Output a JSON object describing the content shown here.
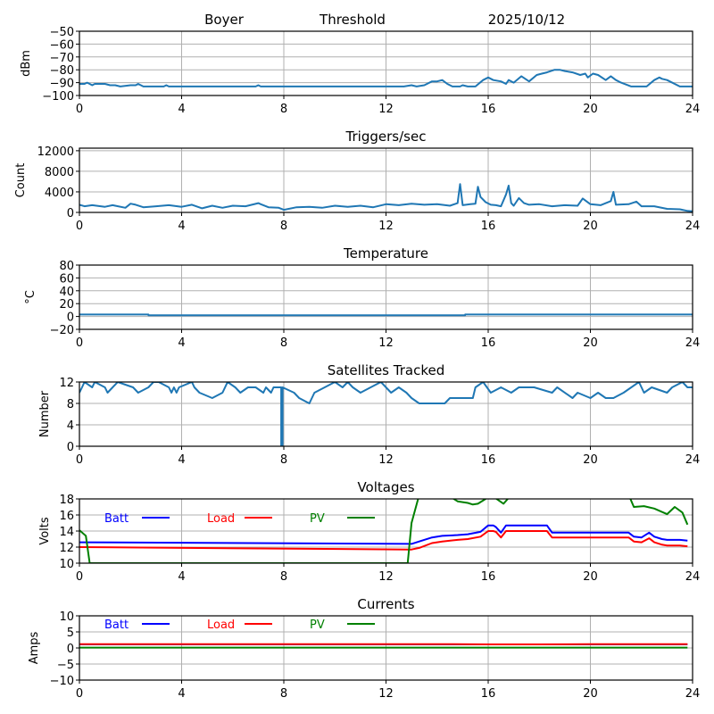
{
  "header": {
    "station": "Boyer",
    "mode": "Threshold",
    "date": "2025/10/12"
  },
  "colors": {
    "series": "#1f77b4",
    "batt": "#0000ff",
    "load": "#ff0000",
    "pv": "#008000",
    "grid": "#b0b0b0"
  },
  "chart_data": [
    {
      "type": "line",
      "title": "",
      "xlabel": "",
      "ylabel": "dBm",
      "xlim": [
        0,
        24
      ],
      "ylim": [
        -100,
        -50
      ],
      "xticks": [
        0,
        4,
        8,
        12,
        16,
        20,
        24
      ],
      "yticks": [
        -100,
        -90,
        -80,
        -70,
        -60,
        -50
      ],
      "ytick_labels": [
        "−100",
        "−90",
        "−80",
        "−70",
        "−60",
        "−50"
      ],
      "grid": true,
      "series": [
        {
          "name": "Threshold",
          "color": "#1f77b4",
          "x": [
            0,
            0.2,
            0.3,
            0.4,
            0.5,
            0.6,
            1.0,
            1.2,
            1.4,
            1.6,
            2.0,
            2.2,
            2.3,
            2.5,
            3.3,
            3.4,
            3.5,
            4.0,
            6.9,
            7.0,
            7.1,
            12.0,
            12.7,
            13.0,
            13.2,
            13.5,
            13.8,
            14.0,
            14.2,
            14.4,
            14.6,
            14.9,
            15.0,
            15.2,
            15.5,
            15.8,
            16.0,
            16.2,
            16.5,
            16.7,
            16.8,
            17.0,
            17.3,
            17.6,
            17.9,
            18.1,
            18.3,
            18.6,
            18.8,
            19.0,
            19.3,
            19.6,
            19.8,
            19.9,
            20.1,
            20.3,
            20.6,
            20.8,
            21.0,
            21.2,
            21.6,
            21.7,
            21.9,
            22.2,
            22.5,
            22.7,
            22.8,
            23.0,
            23.5,
            24.0
          ],
          "y": [
            -91,
            -91,
            -90,
            -91,
            -92,
            -91,
            -91,
            -92,
            -92,
            -93,
            -92,
            -92,
            -91,
            -93,
            -93,
            -92,
            -93,
            -93,
            -93,
            -92,
            -93,
            -93,
            -93,
            -92,
            -93,
            -92,
            -89,
            -89,
            -88,
            -91,
            -93,
            -93,
            -92,
            -93,
            -93,
            -88,
            -86,
            -88,
            -89,
            -91,
            -88,
            -90,
            -85,
            -89,
            -84,
            -83,
            -82,
            -80,
            -80,
            -81,
            -82,
            -84,
            -83,
            -86,
            -83,
            -84,
            -88,
            -85,
            -88,
            -90,
            -93,
            -93,
            -93,
            -93,
            -88,
            -86,
            -87,
            -88,
            -93,
            -93
          ]
        }
      ]
    },
    {
      "type": "line",
      "title": "Triggers/sec",
      "xlabel": "",
      "ylabel": "Count",
      "xlim": [
        0,
        24
      ],
      "ylim": [
        0,
        12500
      ],
      "xticks": [
        0,
        4,
        8,
        12,
        16,
        20,
        24
      ],
      "yticks": [
        0,
        4000,
        8000,
        12000
      ],
      "ytick_labels": [
        "0",
        "4000",
        "8000",
        "12000"
      ],
      "grid": true,
      "series": [
        {
          "name": "Triggers/sec",
          "color": "#1f77b4",
          "x": [
            0,
            0.2,
            0.5,
            1.0,
            1.3,
            1.8,
            2.0,
            2.2,
            2.5,
            3.0,
            3.5,
            4.0,
            4.4,
            4.8,
            5.2,
            5.6,
            6.0,
            6.5,
            7.0,
            7.1,
            7.4,
            7.8,
            8.0,
            8.5,
            9.0,
            9.5,
            10.0,
            10.5,
            11.0,
            11.5,
            12.0,
            12.5,
            13.0,
            13.5,
            14.0,
            14.5,
            14.8,
            14.9,
            15.0,
            15.3,
            15.5,
            15.6,
            15.7,
            15.9,
            16.1,
            16.3,
            16.5,
            16.7,
            16.8,
            16.9,
            17.0,
            17.2,
            17.4,
            17.6,
            18.0,
            18.5,
            19.0,
            19.5,
            19.7,
            20.0,
            20.4,
            20.8,
            20.9,
            21.0,
            21.5,
            21.8,
            22.0,
            22.5,
            23.0,
            23.5,
            23.8,
            24.0
          ],
          "y": [
            1500,
            1200,
            1400,
            1100,
            1400,
            900,
            1700,
            1500,
            1000,
            1200,
            1400,
            1100,
            1500,
            800,
            1300,
            900,
            1300,
            1200,
            1800,
            1600,
            1000,
            900,
            500,
            1000,
            1100,
            900,
            1300,
            1100,
            1300,
            1000,
            1600,
            1400,
            1700,
            1500,
            1600,
            1300,
            1800,
            5500,
            1400,
            1600,
            1700,
            5000,
            3000,
            2000,
            1500,
            1400,
            1200,
            3500,
            5200,
            1800,
            1300,
            2800,
            1800,
            1500,
            1600,
            1200,
            1400,
            1300,
            2700,
            1600,
            1400,
            2200,
            4000,
            1500,
            1600,
            2100,
            1200,
            1200,
            700,
            600,
            300,
            200
          ]
        }
      ]
    },
    {
      "type": "line",
      "title": "Temperature",
      "xlabel": "",
      "ylabel": "°C",
      "xlim": [
        0,
        24
      ],
      "ylim": [
        -20,
        80
      ],
      "xticks": [
        0,
        4,
        8,
        12,
        16,
        20,
        24
      ],
      "yticks": [
        -20,
        0,
        20,
        40,
        60,
        80
      ],
      "ytick_labels": [
        "−20",
        "0",
        "20",
        "40",
        "60",
        "80"
      ],
      "grid": true,
      "series": [
        {
          "name": "Temperature",
          "color": "#1f77b4",
          "x": [
            0,
            2.7,
            2.7,
            15.1,
            15.1,
            24.0
          ],
          "y": [
            3,
            3,
            2,
            2,
            3,
            3
          ]
        }
      ]
    },
    {
      "type": "line",
      "title": "Satellites Tracked",
      "xlabel": "",
      "ylabel": "Number",
      "xlim": [
        0,
        24
      ],
      "ylim": [
        0,
        12
      ],
      "xticks": [
        0,
        4,
        8,
        12,
        16,
        20,
        24
      ],
      "yticks": [
        0,
        4,
        8,
        12
      ],
      "ytick_labels": [
        "0",
        "4",
        "8",
        "12"
      ],
      "grid": true,
      "series": [
        {
          "name": "Satellites",
          "color": "#1f77b4",
          "x": [
            0,
            0.1,
            0.2,
            0.5,
            0.6,
            1.0,
            1.1,
            1.3,
            1.5,
            2.1,
            2.3,
            2.7,
            2.9,
            3.1,
            3.5,
            3.6,
            3.7,
            3.8,
            3.9,
            4.4,
            4.5,
            4.7,
            5.2,
            5.6,
            5.8,
            6.1,
            6.3,
            6.6,
            6.9,
            7.2,
            7.3,
            7.5,
            7.6,
            7.9,
            7.9,
            7.95,
            7.95,
            8.4,
            8.6,
            9.0,
            9.2,
            9.6,
            10.0,
            10.3,
            10.5,
            10.7,
            11.0,
            11.4,
            11.8,
            12.0,
            12.2,
            12.5,
            12.8,
            13.0,
            13.3,
            14.3,
            14.5,
            15.4,
            15.5,
            15.8,
            16.1,
            16.5,
            16.9,
            17.2,
            17.8,
            18.5,
            18.7,
            19.3,
            19.5,
            20.0,
            20.3,
            20.6,
            20.9,
            21.3,
            21.9,
            22.1,
            22.4,
            23.0,
            23.2,
            23.6,
            23.8,
            24.0
          ],
          "y": [
            10,
            11,
            12,
            11,
            12,
            11,
            10,
            11,
            12,
            11,
            10,
            11,
            12,
            12,
            11,
            10,
            11,
            10,
            11,
            12,
            11,
            10,
            9,
            10,
            12,
            11,
            10,
            11,
            11,
            10,
            11,
            10,
            11,
            11,
            0,
            0,
            11,
            10,
            9,
            8,
            10,
            11,
            12,
            11,
            12,
            11,
            10,
            11,
            12,
            11,
            10,
            11,
            10,
            9,
            8,
            8,
            9,
            9,
            11,
            12,
            10,
            11,
            10,
            11,
            11,
            10,
            11,
            9,
            10,
            9,
            10,
            9,
            9,
            10,
            12,
            10,
            11,
            10,
            11,
            12,
            11,
            11
          ]
        }
      ]
    },
    {
      "type": "line",
      "title": "Voltages",
      "xlabel": "",
      "ylabel": "Volts",
      "xlim": [
        0,
        24
      ],
      "ylim": [
        10,
        18
      ],
      "xticks": [
        0,
        4,
        8,
        12,
        16,
        20,
        24
      ],
      "yticks": [
        10,
        12,
        14,
        16,
        18
      ],
      "ytick_labels": [
        "10",
        "12",
        "14",
        "16",
        "18"
      ],
      "grid": true,
      "legend": "inline-top-left",
      "series": [
        {
          "name": "Batt",
          "color": "#0000ff",
          "x": [
            0,
            13.0,
            13.3,
            13.8,
            14.2,
            14.8,
            15.2,
            15.7,
            16.0,
            16.2,
            16.3,
            16.5,
            16.7,
            18.0,
            18.3,
            18.5,
            19.0,
            20.0,
            21.5,
            21.7,
            22.0,
            22.3,
            22.5,
            22.8,
            23.0,
            23.5,
            23.8
          ],
          "y": [
            12.6,
            12.4,
            12.7,
            13.2,
            13.4,
            13.5,
            13.6,
            13.9,
            14.7,
            14.7,
            14.5,
            13.8,
            14.7,
            14.7,
            14.7,
            13.8,
            13.8,
            13.8,
            13.8,
            13.3,
            13.2,
            13.8,
            13.3,
            13.0,
            12.9,
            12.9,
            12.8
          ]
        },
        {
          "name": "Load",
          "color": "#ff0000",
          "x": [
            0,
            13.0,
            13.3,
            13.8,
            14.2,
            14.8,
            15.2,
            15.7,
            16.0,
            16.2,
            16.3,
            16.5,
            16.7,
            18.0,
            18.3,
            18.5,
            19.0,
            20.0,
            21.5,
            21.7,
            22.0,
            22.3,
            22.5,
            22.8,
            23.0,
            23.5,
            23.8
          ],
          "y": [
            12.0,
            11.7,
            11.9,
            12.5,
            12.7,
            12.9,
            13.0,
            13.3,
            14.0,
            14.0,
            13.9,
            13.2,
            14.0,
            14.0,
            14.0,
            13.2,
            13.2,
            13.2,
            13.2,
            12.7,
            12.6,
            13.1,
            12.6,
            12.3,
            12.2,
            12.2,
            12.1
          ]
        },
        {
          "name": "PV",
          "color": "#008000",
          "x": [
            0,
            0.25,
            0.4,
            12.85,
            13.0,
            13.3,
            13.6,
            14.0,
            14.2,
            14.5,
            14.8,
            15.2,
            15.4,
            15.6,
            15.9,
            16.1,
            16.6,
            16.9,
            21.5,
            21.7,
            22.1,
            22.5,
            23.0,
            23.3,
            23.6,
            23.8
          ],
          "y": [
            14.1,
            13.4,
            10.0,
            10.0,
            15.0,
            18.5,
            18.5,
            18.5,
            18.4,
            18.3,
            17.7,
            17.5,
            17.3,
            17.4,
            18.0,
            18.5,
            17.4,
            18.5,
            18.5,
            17.0,
            17.1,
            16.8,
            16.1,
            17.0,
            16.3,
            14.8
          ]
        }
      ]
    },
    {
      "type": "line",
      "title": "Currents",
      "xlabel": "",
      "ylabel": "Amps",
      "xlim": [
        0,
        24
      ],
      "ylim": [
        -10,
        10
      ],
      "xticks": [
        0,
        4,
        8,
        12,
        16,
        20,
        24
      ],
      "yticks": [
        -10,
        -5,
        0,
        5,
        10
      ],
      "ytick_labels": [
        "−10",
        "−5",
        "0",
        "5",
        "10"
      ],
      "grid": true,
      "legend": "inline-top-left",
      "series": [
        {
          "name": "Batt",
          "color": "#0000ff",
          "x": [
            0,
            23.8
          ],
          "y": [
            1.1,
            1.1
          ]
        },
        {
          "name": "Load",
          "color": "#ff0000",
          "x": [
            0,
            14.0,
            16.0,
            18.0,
            20.0,
            23.8
          ],
          "y": [
            1.2,
            1.2,
            1.1,
            1.1,
            1.2,
            1.2
          ]
        },
        {
          "name": "PV",
          "color": "#008000",
          "x": [
            0,
            23.8
          ],
          "y": [
            0.1,
            0.1
          ]
        }
      ]
    }
  ]
}
